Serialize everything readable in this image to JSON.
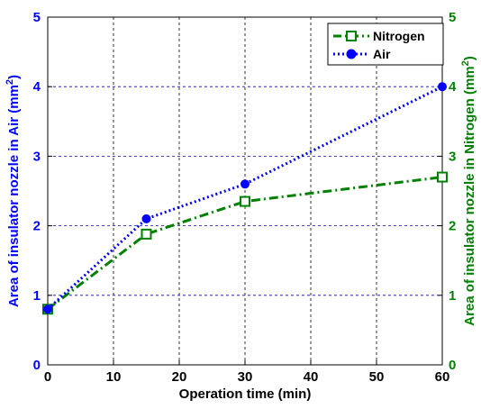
{
  "chart_data": {
    "type": "line",
    "xlabel": "Operation time (min)",
    "ylabel_left": {
      "text": "Area of insulator nozzle in Air (mm",
      "sup": "2",
      "close": ")"
    },
    "ylabel_right": {
      "text": "Area of insulator nozzle in Nitrogen (mm",
      "sup": "2",
      "close": ")"
    },
    "xlim": [
      0,
      60
    ],
    "ylim_left": [
      0,
      5
    ],
    "ylim_right": [
      0,
      5
    ],
    "x_ticks": [
      "0",
      "10",
      "20",
      "30",
      "40",
      "50",
      "60"
    ],
    "y_ticks_left": [
      "0",
      "1",
      "2",
      "3",
      "4",
      "5"
    ],
    "y_ticks_right": [
      "0",
      "1",
      "2",
      "3",
      "4",
      "5"
    ],
    "grid": true,
    "legend_position": "top-right",
    "series": [
      {
        "name": "Nitrogen",
        "axis": "right",
        "color": "#008000",
        "line_style": "dash-dot",
        "marker": "square",
        "x": [
          0,
          15,
          30,
          60
        ],
        "y": [
          0.8,
          1.88,
          2.35,
          2.7
        ]
      },
      {
        "name": "Air",
        "axis": "left",
        "color": "#0000ff",
        "line_style": "dotted",
        "marker": "circle",
        "x": [
          0,
          15,
          30,
          60
        ],
        "y": [
          0.8,
          2.1,
          2.6,
          4.0
        ]
      }
    ]
  }
}
